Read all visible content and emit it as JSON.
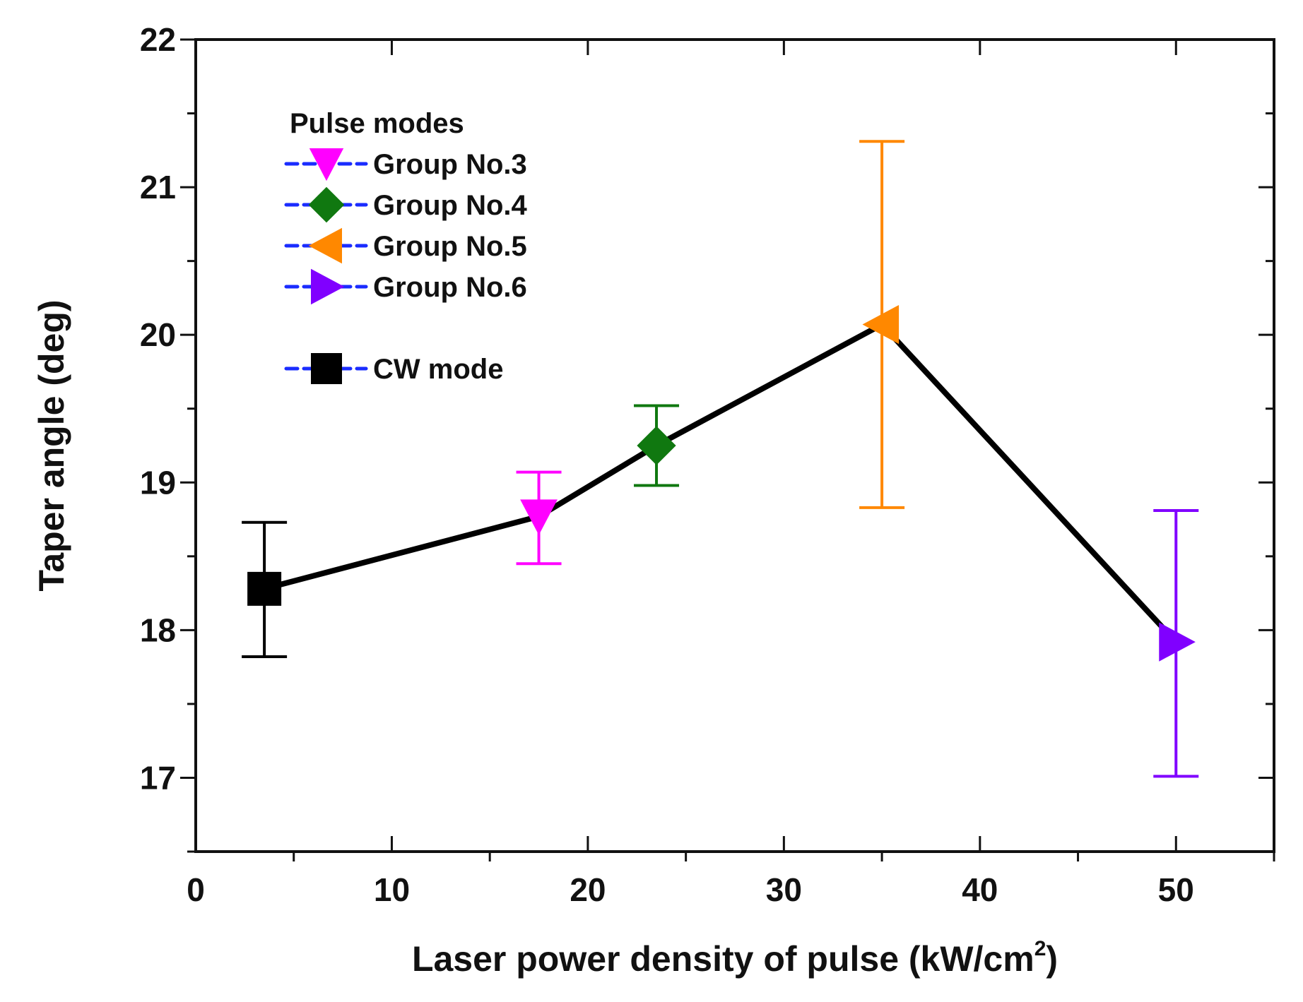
{
  "chart_data": {
    "type": "scatter",
    "title": "",
    "xlabel": "Laser power density of pulse (kW/cm",
    "xlabel_superscript": "2",
    "xlabel_suffix": ")",
    "ylabel": "Taper angle (deg)",
    "xlim": [
      0,
      55
    ],
    "ylim": [
      16.5,
      22
    ],
    "xticks": [
      0,
      10,
      20,
      30,
      40,
      50
    ],
    "xtick_labels": [
      "0",
      "10",
      "20",
      "30",
      "40",
      "50"
    ],
    "yticks": [
      17,
      18,
      19,
      20,
      21,
      22
    ],
    "ytick_labels": [
      "17",
      "18",
      "19",
      "20",
      "21",
      "22"
    ],
    "x_minor_step": 5,
    "y_minor_step": 0.5,
    "grid": false,
    "legend": {
      "placement": "top-left",
      "header": "Pulse modes",
      "entries": [
        "Group No.3",
        "Group No.4",
        "Group No.5",
        "Group No.6"
      ],
      "extra_entry": "CW mode",
      "line_color": "#1a2cff"
    },
    "connecting_line": {
      "color": "#000000",
      "order": [
        "CW mode",
        "Group No.3",
        "Group No.4",
        "Group No.5",
        "Group No.6"
      ]
    },
    "series": [
      {
        "name": "CW mode",
        "marker": "square",
        "color": "#000000",
        "x": 3.5,
        "y": 18.28,
        "err_low": 17.82,
        "err_high": 18.73
      },
      {
        "name": "Group No.3",
        "marker": "triangle-down",
        "color": "#ff00ff",
        "x": 17.5,
        "y": 18.77,
        "err_low": 18.45,
        "err_high": 19.07
      },
      {
        "name": "Group No.4",
        "marker": "diamond",
        "color": "#107810",
        "x": 23.5,
        "y": 19.25,
        "err_low": 18.98,
        "err_high": 19.52
      },
      {
        "name": "Group No.5",
        "marker": "triangle-left",
        "color": "#ff8800",
        "x": 35,
        "y": 20.07,
        "err_low": 18.83,
        "err_high": 21.31
      },
      {
        "name": "Group No.6",
        "marker": "triangle-right",
        "color": "#8000ff",
        "x": 50,
        "y": 17.92,
        "err_low": 17.01,
        "err_high": 18.81
      }
    ]
  }
}
